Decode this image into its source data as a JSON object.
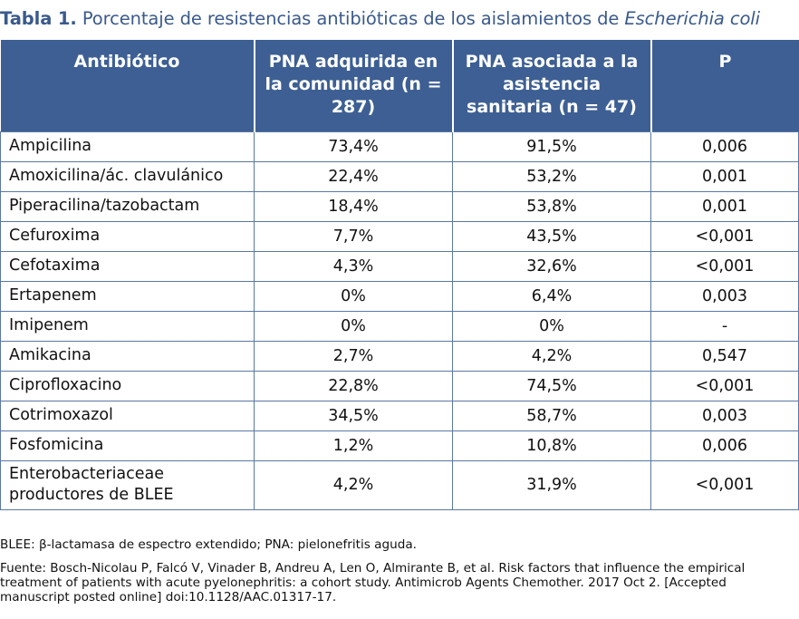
{
  "title": {
    "label": "Tabla 1.",
    "text": "Porcentaje de resistencias antibióticas de los aislamientos de",
    "organism": "Escherichia coli"
  },
  "table": {
    "headers": [
      "Antibiótico",
      "PNA adquirida en la comunidad (n = 287)",
      "PNA asociada a la asistencia sanitaria (n = 47)",
      "P"
    ],
    "rows": [
      {
        "antibiotic": "Ampicilina",
        "community": "73,4%",
        "healthcare": "91,5%",
        "p": "0,006"
      },
      {
        "antibiotic": "Amoxicilina/ác. clavulánico",
        "community": "22,4%",
        "healthcare": "53,2%",
        "p": "0,001"
      },
      {
        "antibiotic": "Piperacilina/tazobactam",
        "community": "18,4%",
        "healthcare": "53,8%",
        "p": "0,001"
      },
      {
        "antibiotic": "Cefuroxima",
        "community": "7,7%",
        "healthcare": "43,5%",
        "p": "<0,001"
      },
      {
        "antibiotic": "Cefotaxima",
        "community": "4,3%",
        "healthcare": "32,6%",
        "p": "<0,001"
      },
      {
        "antibiotic": "Ertapenem",
        "community": "0%",
        "healthcare": "6,4%",
        "p": "0,003"
      },
      {
        "antibiotic": "Imipenem",
        "community": "0%",
        "healthcare": "0%",
        "p": "-"
      },
      {
        "antibiotic": "Amikacina",
        "community": "2,7%",
        "healthcare": "4,2%",
        "p": "0,547"
      },
      {
        "antibiotic": "Ciprofloxacino",
        "community": "22,8%",
        "healthcare": "74,5%",
        "p": "<0,001"
      },
      {
        "antibiotic": "Cotrimoxazol",
        "community": "34,5%",
        "healthcare": "58,7%",
        "p": "0,003"
      },
      {
        "antibiotic": "Fosfomicina",
        "community": "1,2%",
        "healthcare": "10,8%",
        "p": "0,006"
      },
      {
        "antibiotic": "Enterobacteriaceae productores de BLEE",
        "community": "4,2%",
        "healthcare": "31,9%",
        "p": "<0,001"
      }
    ]
  },
  "notes": {
    "abbreviations": "BLEE: β-lactamasa de espectro extendido; PNA: pielonefritis aguda.",
    "source": "Fuente: Bosch-Nicolau P, Falcó V, Vinader B, Andreu A, Len O, Almirante B, et al. Risk factors that influence the empirical treatment of patients with acute pyelonephritis: a cohort study. Antimicrob Agents Chemother.  2017 Oct 2. [Accepted manuscript posted online] doi:10.1128/AAC.01317-17."
  },
  "colors": {
    "title": "#3a5a8c",
    "header_bg": "#3d5f93",
    "border": "#5a78a5"
  }
}
